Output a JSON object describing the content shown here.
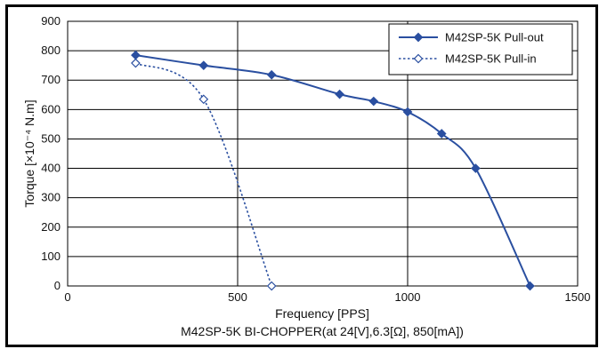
{
  "chart_data": {
    "type": "line",
    "title": "",
    "caption": "M42SP-5K BI-CHOPPER(at 24[V],6.3[Ω], 850[mA])",
    "xlabel": "Frequency [PPS]",
    "ylabel": "Torque [×10⁻⁴ N.m]",
    "xlim": [
      0,
      1500
    ],
    "ylim": [
      0,
      900
    ],
    "xticks": [
      "0",
      "500",
      "1000",
      "1500"
    ],
    "yticks": [
      "0",
      "100",
      "200",
      "300",
      "400",
      "500",
      "600",
      "700",
      "800",
      "900"
    ],
    "grid": true,
    "legend_position": "top-right",
    "series": [
      {
        "name": "M42SP-5K Pull-out",
        "color": "#2a4fa0",
        "line_style": "solid",
        "marker": "filled-diamond",
        "x": [
          200,
          400,
          600,
          800,
          900,
          1000,
          1100,
          1200,
          1360
        ],
        "y": [
          785,
          750,
          718,
          652,
          628,
          592,
          518,
          400,
          0
        ]
      },
      {
        "name": "M42SP-5K Pull-in",
        "color": "#2a4fa0",
        "line_style": "dotted",
        "marker": "hollow-diamond",
        "x": [
          200,
          400,
          600
        ],
        "y": [
          758,
          635,
          0
        ]
      }
    ]
  }
}
